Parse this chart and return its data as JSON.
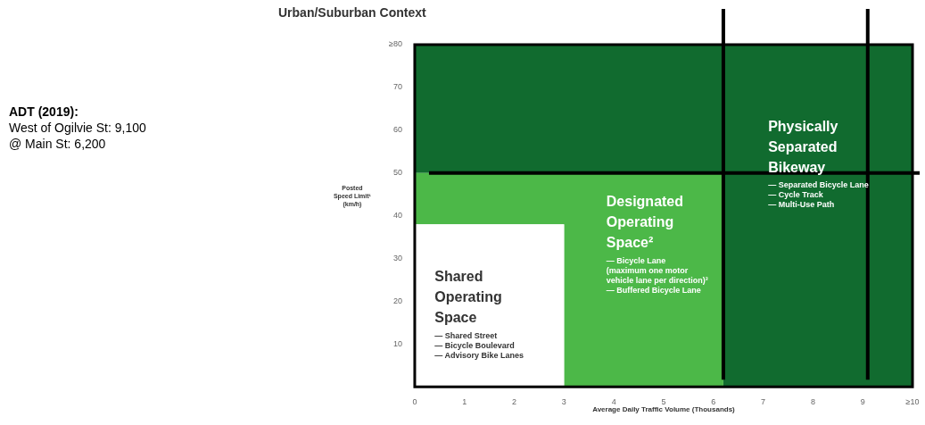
{
  "chart_data": {
    "type": "area",
    "title": "Urban/Suburban Context",
    "xlabel": "Average Daily Traffic Volume (Thousands)",
    "ylabel": "Posted\nSpeed Limit¹\n(km/h)",
    "xlim": [
      0,
      10
    ],
    "xticks": [
      0,
      1,
      2,
      3,
      4,
      5,
      6,
      7,
      8,
      9,
      {
        "value": 10,
        "label": "≥10"
      }
    ],
    "ylim": [
      0,
      80
    ],
    "yticks": [
      10,
      20,
      30,
      40,
      50,
      60,
      70,
      {
        "value": 80,
        "label": "≥80"
      }
    ],
    "stacked": true,
    "x": [
      0,
      3,
      3,
      6.2,
      6.2,
      10
    ],
    "series": [
      {
        "color": "#ffffff",
        "values": [
          38,
          38,
          0,
          0,
          0,
          0
        ]
      },
      {
        "color": "#4cb848",
        "values": [
          12,
          12,
          50,
          50,
          0,
          0
        ]
      },
      {
        "color": "#116b2f",
        "values": [
          30,
          30,
          30,
          30,
          80,
          80
        ]
      }
    ],
    "ref_lines": [
      {
        "axis": "x",
        "value": 6.2,
        "color": "#000000"
      },
      {
        "axis": "x",
        "value": 9.1,
        "color": "#000000"
      },
      {
        "axis": "y",
        "value": 50,
        "color": "#000000"
      }
    ],
    "annotations": [
      "ADT (2019):\nWest of Ogilvie St: 9,100\n@ Main St: 6,200",
      "Shared\nOperating\nSpace\n— Shared Street\n— Bicycle Boulevard\n— Advisory Bike Lanes",
      "Designated\nOperating\nSpace²\n— Bicycle Lane\n(maximum one motor\nvehicle lane per direction)³\n— Buffered Bicycle Lane",
      "Physically\nSeparated\nBikeway\n— Separated Bicycle Lane\n— Cycle Track\n— Multi-Use Path"
    ]
  }
}
